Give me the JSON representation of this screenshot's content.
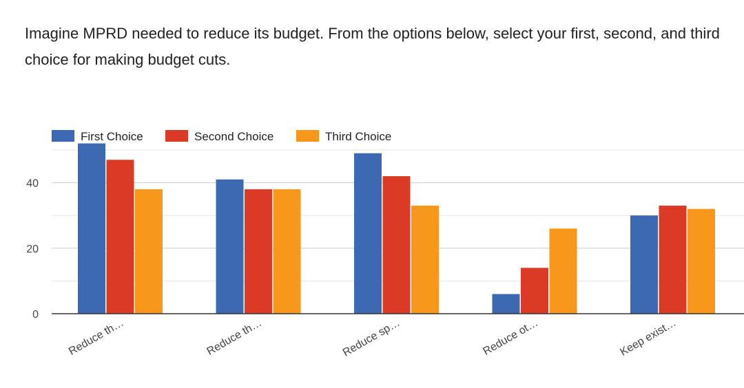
{
  "question": {
    "text": "Imagine MPRD needed to reduce its budget. From the options below, select your first, second, and third choice for making budget cuts."
  },
  "colors": {
    "first": "#3d68b2",
    "second": "#db3b26",
    "third": "#f7981d",
    "grid": "#cccccc",
    "baseline": "#333333",
    "text": "#444444"
  },
  "chart_data": {
    "type": "bar",
    "title": "Imagine MPRD needed to reduce its budget. From the options below, select your first, second, and third choice for making budget cuts.",
    "xlabel": "",
    "ylabel": "",
    "categories": [
      "Reduce th…",
      "Reduce th…",
      "Reduce sp…",
      "Reduce ot…",
      "Keep exist…"
    ],
    "series": [
      {
        "name": "First Choice",
        "color": "#3d68b2",
        "values": [
          52,
          41,
          49,
          6,
          30
        ]
      },
      {
        "name": "Second Choice",
        "color": "#db3b26",
        "values": [
          47,
          38,
          42,
          14,
          33
        ]
      },
      {
        "name": "Third Choice",
        "color": "#f7981d",
        "values": [
          38,
          38,
          33,
          26,
          32
        ]
      }
    ],
    "ylim": [
      0,
      50
    ],
    "yticks": [
      0,
      20,
      40
    ],
    "grid": true,
    "legend": "top-left"
  }
}
